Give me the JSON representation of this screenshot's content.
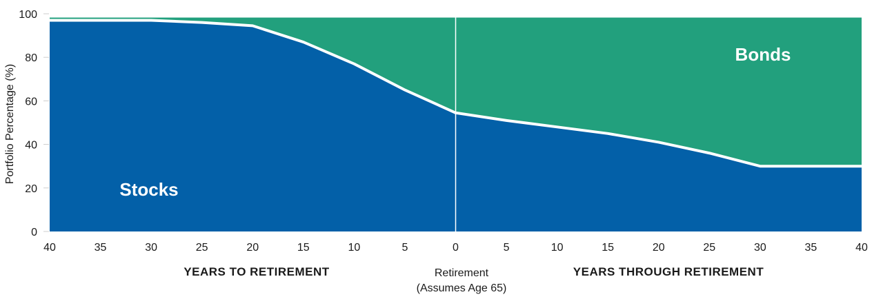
{
  "chart_data": {
    "type": "area",
    "title": "",
    "ylabel": "Portfolio Percentage (%)",
    "ylim": [
      0,
      100
    ],
    "yticks": [
      0,
      20,
      40,
      60,
      80,
      100
    ],
    "xlim": [
      -40,
      40
    ],
    "x": [
      -40,
      -35,
      -30,
      -25,
      -20,
      -15,
      -10,
      -5,
      0,
      5,
      10,
      15,
      20,
      25,
      30,
      35,
      40
    ],
    "xtick_labels": [
      "40",
      "35",
      "30",
      "25",
      "20",
      "15",
      "10",
      "5",
      "0",
      "5",
      "10",
      "15",
      "20",
      "25",
      "30",
      "35",
      "40"
    ],
    "series": [
      {
        "name": "Stocks",
        "color": "#0360a8",
        "values": [
          97,
          97,
          97,
          96,
          94.5,
          87,
          77,
          65,
          54.5,
          51,
          48,
          45,
          41,
          36,
          30,
          30,
          30
        ]
      },
      {
        "name": "Bonds",
        "color": "#22a07d",
        "values": [
          3,
          3,
          3,
          4,
          5.5,
          13,
          23,
          35,
          45.5,
          49,
          52,
          55,
          59,
          64,
          70,
          70,
          70
        ]
      }
    ],
    "annotations": {
      "stocks_label": "Stocks",
      "bonds_label": "Bonds",
      "left_group_label": "YEARS TO RETIREMENT",
      "right_group_label": "YEARS THROUGH RETIREMENT",
      "retirement_line1": "Retirement",
      "retirement_line2": "(Assumes Age 65)",
      "retirement_x": 0
    }
  }
}
